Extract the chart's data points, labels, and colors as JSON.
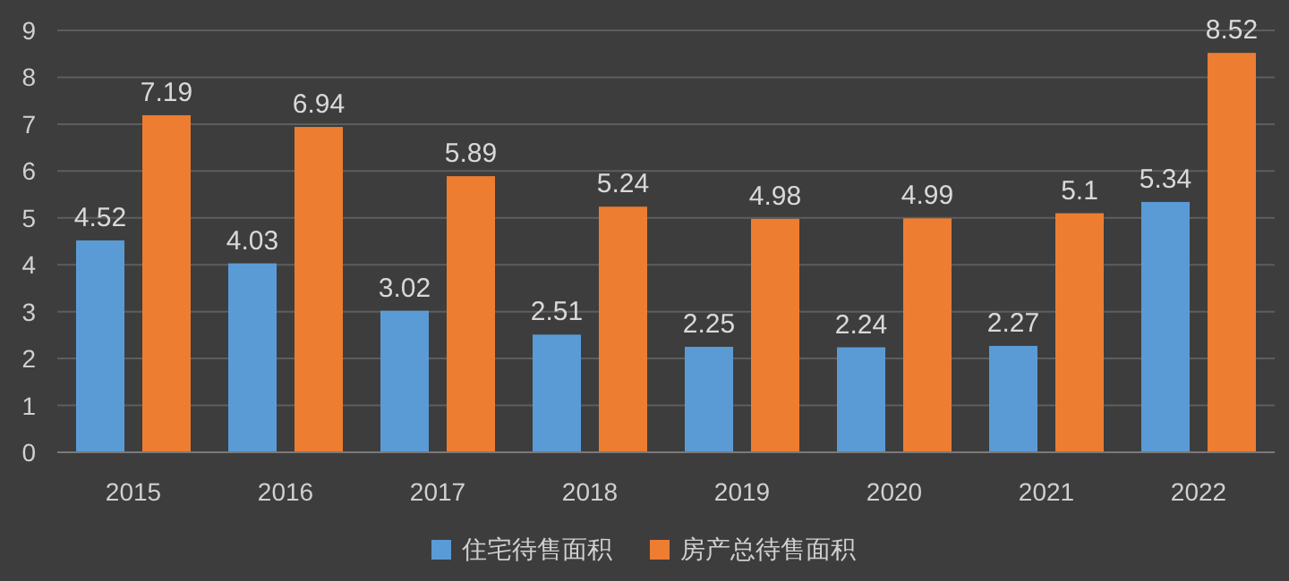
{
  "chart_data": {
    "type": "bar",
    "categories": [
      "2015",
      "2016",
      "2017",
      "2018",
      "2019",
      "2020",
      "2021",
      "2022"
    ],
    "series": [
      {
        "name": "住宅待售面积",
        "color": "#5b9bd5",
        "values": [
          4.52,
          4.03,
          3.02,
          2.51,
          2.25,
          2.24,
          2.27,
          5.34
        ]
      },
      {
        "name": "房产总待售面积",
        "color": "#ed7d31",
        "values": [
          7.19,
          6.94,
          5.89,
          5.24,
          4.98,
          4.99,
          5.1,
          8.52
        ]
      }
    ],
    "ylim": [
      0,
      9
    ],
    "yticks": [
      0,
      1,
      2,
      3,
      4,
      5,
      6,
      7,
      8,
      9
    ],
    "grid": "y",
    "legend": "bottom",
    "data_labels": true
  }
}
